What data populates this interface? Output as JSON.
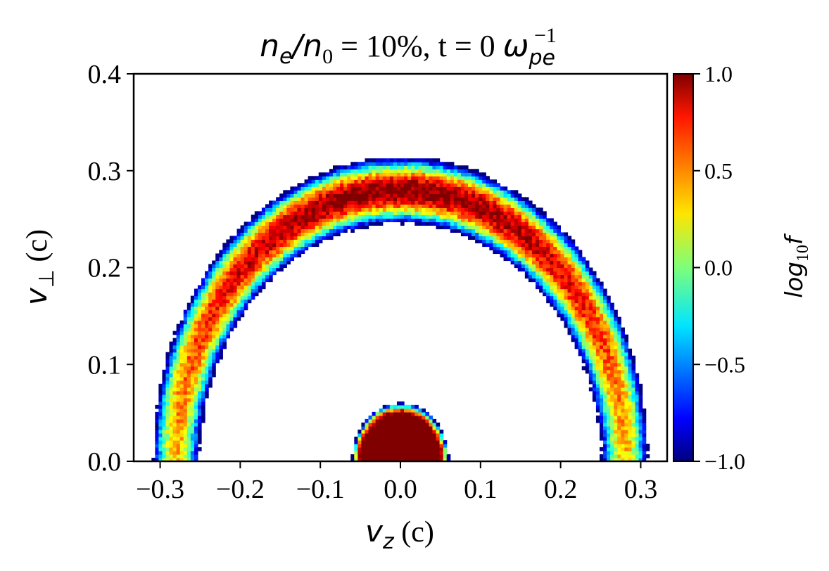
{
  "chart_data": {
    "type": "heatmap",
    "title": {
      "ratio_num": "n",
      "ratio_num_sub": "e",
      "slash": "/",
      "ratio_den": "n",
      "ratio_den_sub": "0",
      "rest": " = 10%, t = 0 ",
      "omega": "ω",
      "omega_sub": "pe",
      "omega_sup": "−1"
    },
    "xlabel": {
      "symbol": "v",
      "sub": "z",
      "unit": " (c)"
    },
    "ylabel": {
      "symbol": "v",
      "sub": "⊥",
      "unit": " (c)"
    },
    "xlim": [
      -0.333,
      0.333
    ],
    "ylim": [
      0,
      0.4
    ],
    "xticks": [
      {
        "value": -0.3,
        "label": "−0.3"
      },
      {
        "value": -0.2,
        "label": "−0.2"
      },
      {
        "value": -0.1,
        "label": "−0.1"
      },
      {
        "value": 0.0,
        "label": "0.0"
      },
      {
        "value": 0.1,
        "label": "0.1"
      },
      {
        "value": 0.2,
        "label": "0.2"
      },
      {
        "value": 0.3,
        "label": "0.3"
      }
    ],
    "yticks": [
      {
        "value": 0.0,
        "label": "0.0"
      },
      {
        "value": 0.1,
        "label": "0.1"
      },
      {
        "value": 0.2,
        "label": "0.2"
      },
      {
        "value": 0.3,
        "label": "0.3"
      },
      {
        "value": 0.4,
        "label": "0.4"
      }
    ],
    "colorbar": {
      "label": "log",
      "label_sub": "10",
      "label_var": "f",
      "colormap": "jet",
      "range": [
        -1.0,
        1.0
      ],
      "ticks": [
        {
          "value": 1.0,
          "label": "1.0"
        },
        {
          "value": 0.5,
          "label": "0.5"
        },
        {
          "value": 0.0,
          "label": "0.0"
        },
        {
          "value": -0.5,
          "label": "−0.5"
        },
        {
          "value": -1.0,
          "label": "−1.0"
        }
      ]
    },
    "features": [
      {
        "name": "ring",
        "center": [
          0.0,
          0.0
        ],
        "radius": 0.28,
        "peak_log10f": 1.0,
        "v_perp_min": 0.0
      },
      {
        "name": "core",
        "center": [
          0.0,
          0.0
        ],
        "radius": 0.06,
        "peak_log10f": 1.0
      }
    ]
  }
}
